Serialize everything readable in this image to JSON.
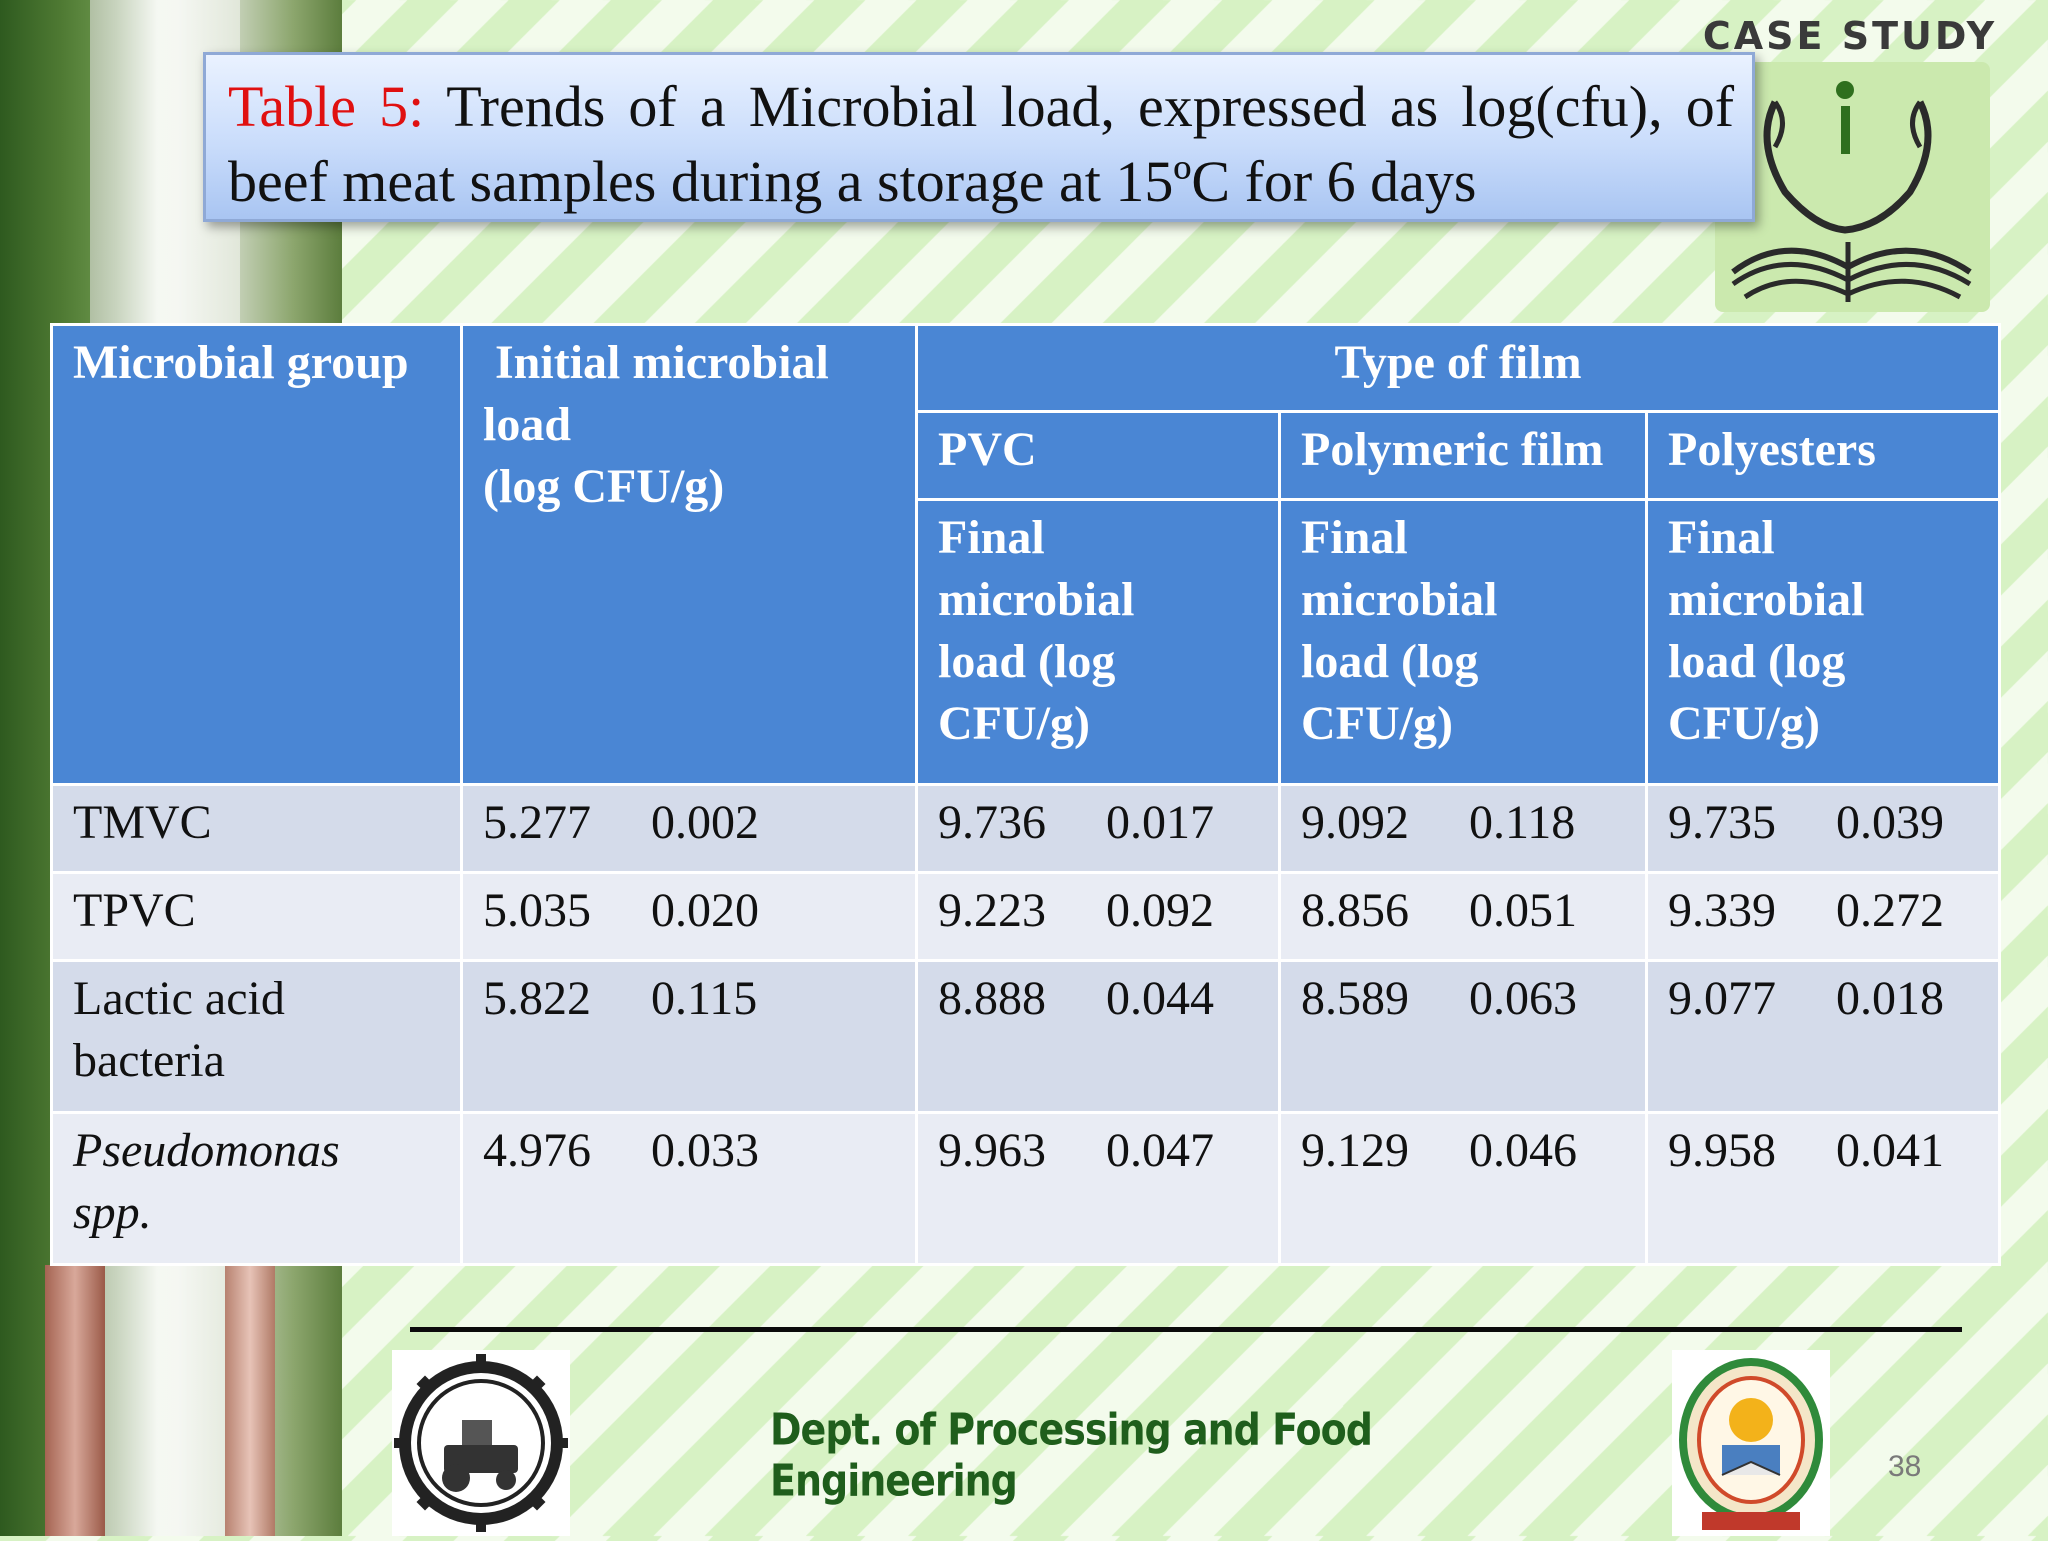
{
  "header": {
    "badge_text": "CASE STUDY",
    "title_label": "Table 5:",
    "title_text": "Trends of a Microbial load, expressed as log(cfu), of beef meat samples during a storage at 15ºC for 6 days"
  },
  "table": {
    "col_microbial_group": "Microbial group",
    "col_initial_line1": "Initial microbial",
    "col_initial_line2": "load",
    "col_initial_line3": "(log CFU/g)",
    "col_type_of_film": "Type of film",
    "films": [
      "PVC",
      "Polymeric film",
      "Polyesters"
    ],
    "final_label_lines": [
      "Final",
      "microbial",
      "load (log",
      "CFU/g)"
    ],
    "rows": [
      {
        "group_line1": "TMVC",
        "group_line2": "",
        "initial": [
          "5.277",
          "0.002"
        ],
        "pvc": [
          "9.736",
          "0.017"
        ],
        "polymeric": [
          "9.092",
          "0.118"
        ],
        "polyesters": [
          "9.735",
          "0.039"
        ]
      },
      {
        "group_line1": "TPVC",
        "group_line2": "",
        "initial": [
          "5.035",
          "0.020"
        ],
        "pvc": [
          "9.223",
          "0.092"
        ],
        "polymeric": [
          "8.856",
          "0.051"
        ],
        "polyesters": [
          "9.339",
          "0.272"
        ]
      },
      {
        "group_line1": "Lactic acid",
        "group_line2": "bacteria",
        "initial": [
          "5.822",
          "0.115"
        ],
        "pvc": [
          "8.888",
          "0.044"
        ],
        "polymeric": [
          "8.589",
          "0.063"
        ],
        "polyesters": [
          "9.077",
          "0.018"
        ]
      },
      {
        "group_line1": "Pseudomonas",
        "group_line2": "spp.",
        "initial": [
          "4.976",
          "0.033"
        ],
        "pvc": [
          "9.963",
          "0.047"
        ],
        "polymeric": [
          "9.129",
          "0.046"
        ],
        "polyesters": [
          "9.958",
          "0.041"
        ]
      }
    ]
  },
  "footer": {
    "department": "Dept. of Processing and Food Engineering",
    "page_number": "38"
  },
  "colors": {
    "header_blue": "#4a86d4",
    "title_label_red": "#e01010",
    "dept_green": "#1f5e1c"
  }
}
